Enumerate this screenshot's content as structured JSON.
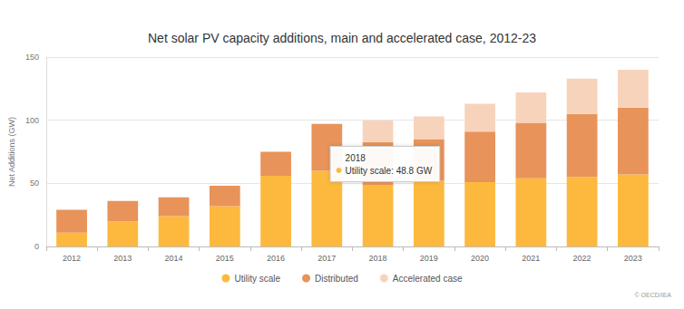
{
  "chart_data": {
    "type": "bar",
    "title": "Net solar PV capacity additions, main and accelerated case, 2012-23",
    "y_label": "Net Additions (GW)",
    "categories": [
      "2012",
      "2013",
      "2014",
      "2015",
      "2016",
      "2017",
      "2018",
      "2019",
      "2020",
      "2021",
      "2022",
      "2023"
    ],
    "series": [
      {
        "name": "Utility scale",
        "color": "#fdb93e",
        "values": [
          11,
          20,
          24,
          32,
          56,
          60,
          48.8,
          52,
          51,
          54,
          55,
          57
        ]
      },
      {
        "name": "Distributed",
        "color": "#e8935a",
        "values": [
          18,
          16,
          15,
          16,
          19,
          37,
          34,
          33,
          40,
          44,
          50,
          53
        ]
      },
      {
        "name": "Accelerated case",
        "color": "#f8d3bb",
        "values": [
          null,
          null,
          null,
          null,
          null,
          null,
          17,
          18,
          22,
          24,
          28,
          30
        ]
      }
    ],
    "ylim": [
      0,
      150
    ],
    "yticks": [
      0,
      50,
      100,
      150
    ],
    "grid": true,
    "stacked": true,
    "legend": "bottom",
    "annotations": [
      {
        "category": "2018",
        "series": "Utility scale",
        "lines": [
          "2018",
          "Utility scale: 48.8 GW"
        ]
      }
    ],
    "source": "© OECD/IEA"
  }
}
